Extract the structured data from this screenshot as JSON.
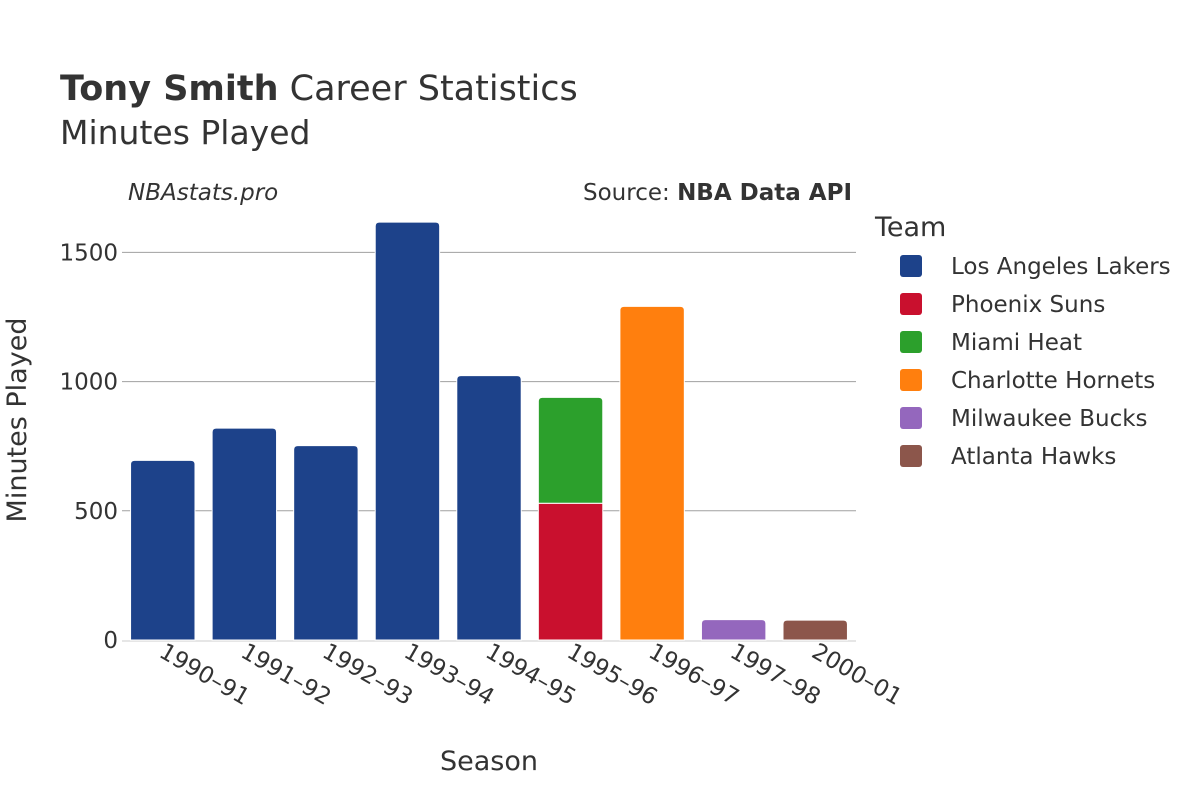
{
  "title": {
    "name": "Tony Smith",
    "rest": " Career Statistics",
    "subtitle": "Minutes Played"
  },
  "credits": {
    "site": "NBAstats.pro",
    "source_prefix": "Source: ",
    "source_name": "NBA Data API"
  },
  "chart_data": {
    "type": "bar",
    "stacked": true,
    "xlabel": "Season",
    "ylabel": "Minutes Played",
    "ylim": [
      0,
      1700
    ],
    "yticks": [
      0,
      500,
      1000,
      1500
    ],
    "grid": true,
    "legend_title": "Team",
    "legend_position": "right",
    "categories": [
      "1990–91",
      "1991–92",
      "1992–93",
      "1993–94",
      "1994–95",
      "1995–96",
      "1996–97",
      "1997–98",
      "2000–01"
    ],
    "series": [
      {
        "name": "Los Angeles Lakers",
        "color": "#1d428a",
        "values": [
          695,
          820,
          752,
          1617,
          1023,
          null,
          null,
          null,
          null
        ]
      },
      {
        "name": "Phoenix Suns",
        "color": "#c9102e",
        "values": [
          null,
          null,
          null,
          null,
          null,
          529,
          null,
          null,
          null
        ]
      },
      {
        "name": "Miami Heat",
        "color": "#2ca02c",
        "values": [
          null,
          null,
          null,
          null,
          null,
          410,
          null,
          null,
          null
        ]
      },
      {
        "name": "Charlotte Hornets",
        "color": "#ff7f0e",
        "values": [
          null,
          null,
          null,
          null,
          null,
          null,
          1291,
          null,
          null
        ]
      },
      {
        "name": "Milwaukee Bucks",
        "color": "#9467bd",
        "values": [
          null,
          null,
          null,
          null,
          null,
          null,
          null,
          79,
          null
        ]
      },
      {
        "name": "Atlanta Hawks",
        "color": "#8c564b",
        "values": [
          null,
          null,
          null,
          null,
          null,
          null,
          null,
          null,
          77
        ]
      }
    ]
  }
}
